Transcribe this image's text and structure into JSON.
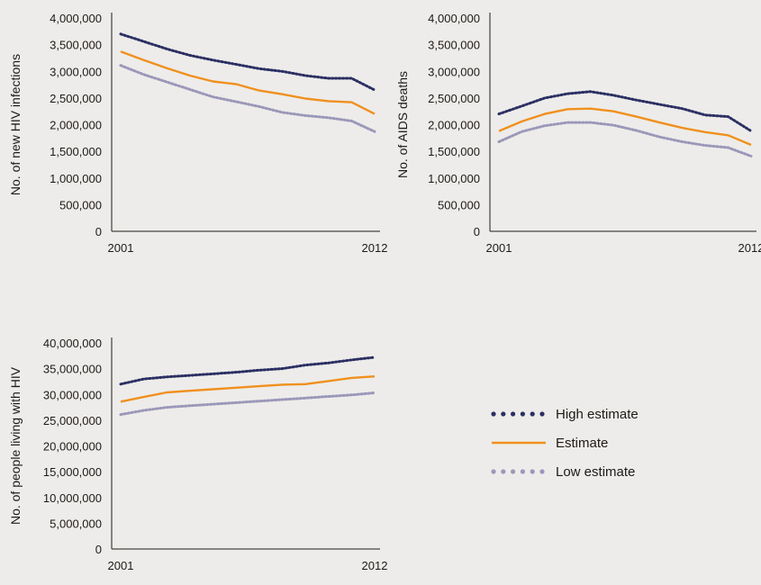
{
  "series_meta": [
    {
      "name": "High estimate",
      "color": "#2b2f62",
      "style": "dotted"
    },
    {
      "name": "Estimate",
      "color": "#f0901e",
      "style": "solid"
    },
    {
      "name": "Low estimate",
      "color": "#9b97b9",
      "style": "dotted"
    }
  ],
  "chart_data": [
    {
      "type": "line",
      "ylabel": "No. of new HIV infections",
      "x_tick_labels": [
        "2001",
        "2012"
      ],
      "x": [
        2001,
        2002,
        2003,
        2004,
        2005,
        2006,
        2007,
        2008,
        2009,
        2010,
        2011,
        2012
      ],
      "ylim": [
        0,
        4000000
      ],
      "yticks": [
        "0",
        "500,000",
        "1,000,000",
        "1,500,000",
        "2,000,000",
        "2,500,000",
        "3,000,000",
        "3,500,000",
        "4,000,000"
      ],
      "series": [
        {
          "name": "High estimate",
          "values": [
            3700000,
            3560000,
            3420000,
            3300000,
            3210000,
            3130000,
            3050000,
            3000000,
            2920000,
            2870000,
            2870000,
            2650000
          ]
        },
        {
          "name": "Estimate",
          "values": [
            3370000,
            3210000,
            3060000,
            2920000,
            2810000,
            2760000,
            2640000,
            2570000,
            2490000,
            2440000,
            2420000,
            2200000
          ]
        },
        {
          "name": "Low estimate",
          "values": [
            3110000,
            2940000,
            2800000,
            2660000,
            2520000,
            2430000,
            2340000,
            2230000,
            2170000,
            2130000,
            2070000,
            1870000
          ]
        }
      ]
    },
    {
      "type": "line",
      "ylabel": "No. of AIDS deaths",
      "x_tick_labels": [
        "2001",
        "2012"
      ],
      "x": [
        2001,
        2002,
        2003,
        2004,
        2005,
        2006,
        2007,
        2008,
        2009,
        2010,
        2011,
        2012
      ],
      "ylim": [
        0,
        4000000
      ],
      "yticks": [
        "0",
        "500,000",
        "1,000,000",
        "1,500,000",
        "2,000,000",
        "2,500,000",
        "3,000,000",
        "3,500,000",
        "4,000,000"
      ],
      "series": [
        {
          "name": "High estimate",
          "values": [
            2200000,
            2350000,
            2500000,
            2580000,
            2620000,
            2550000,
            2460000,
            2380000,
            2300000,
            2180000,
            2150000,
            1880000
          ]
        },
        {
          "name": "Estimate",
          "values": [
            1880000,
            2060000,
            2200000,
            2290000,
            2300000,
            2250000,
            2150000,
            2040000,
            1940000,
            1860000,
            1800000,
            1620000
          ]
        },
        {
          "name": "Low estimate",
          "values": [
            1680000,
            1870000,
            1980000,
            2040000,
            2040000,
            1990000,
            1890000,
            1770000,
            1680000,
            1610000,
            1570000,
            1410000
          ]
        }
      ]
    },
    {
      "type": "line",
      "ylabel": "No. of people living with HIV",
      "x_tick_labels": [
        "2001",
        "2012"
      ],
      "x": [
        2001,
        2002,
        2003,
        2004,
        2005,
        2006,
        2007,
        2008,
        2009,
        2010,
        2011,
        2012
      ],
      "ylim": [
        0,
        40000000
      ],
      "yticks": [
        "0",
        "5,000,000",
        "10,000,000",
        "15,000,000",
        "20,000,000",
        "25,000,000",
        "30,000,000",
        "35,000,000",
        "40,000,000"
      ],
      "series": [
        {
          "name": "High estimate",
          "values": [
            32000000,
            33000000,
            33400000,
            33700000,
            34000000,
            34300000,
            34700000,
            35000000,
            35700000,
            36100000,
            36700000,
            37200000
          ]
        },
        {
          "name": "Estimate",
          "values": [
            28600000,
            29500000,
            30400000,
            30700000,
            31000000,
            31300000,
            31600000,
            31900000,
            32000000,
            32600000,
            33200000,
            33500000
          ]
        },
        {
          "name": "Low estimate",
          "values": [
            26100000,
            26900000,
            27500000,
            27800000,
            28100000,
            28400000,
            28700000,
            29000000,
            29300000,
            29600000,
            29900000,
            30300000
          ]
        }
      ]
    }
  ]
}
